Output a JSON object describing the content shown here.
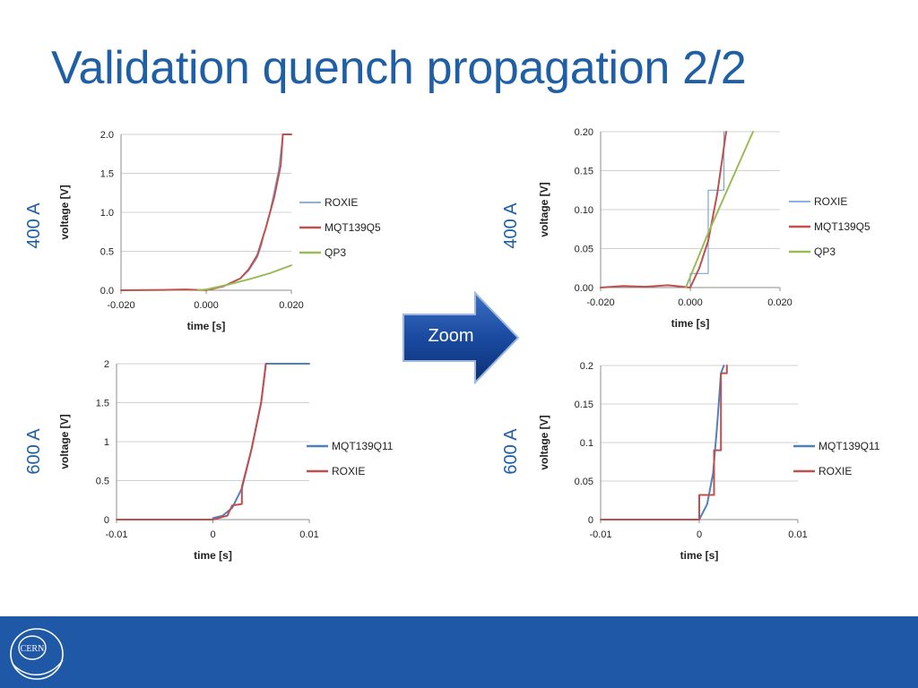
{
  "slide": {
    "title": "Validation quench propagation 2/2",
    "zoom_label": "Zoom",
    "logo_text": "CERN"
  },
  "side_labels": {
    "top_left": "400 A",
    "top_right": "400 A",
    "bottom_left": "600 A",
    "bottom_right": "600 A"
  },
  "colors": {
    "title": "#1f5fa6",
    "footer": "#2058a8",
    "roxie": "#7aa6d6",
    "mqt139q5": "#c0504d",
    "qp3": "#9bbb59",
    "mqt139q11": "#4f81bd",
    "roxie_600": "#c0504d"
  },
  "chart_data": [
    {
      "id": "c1",
      "type": "line",
      "xlabel": "time [s]",
      "ylabel": "voltage [V]",
      "xlim": [
        -0.02,
        0.02
      ],
      "ylim": [
        0,
        2.0
      ],
      "xticks": [
        "-0.020",
        "0.000",
        "0.020"
      ],
      "yticks": [
        "0.0",
        "0.5",
        "1.0",
        "1.5",
        "2.0"
      ],
      "legend_position": "right",
      "series": [
        {
          "name": "ROXIE",
          "color": "#7aa6d6",
          "width": 1.2,
          "x": [
            0.0,
            0.004,
            0.008,
            0.01,
            0.012,
            0.013,
            0.0135,
            0.015,
            0.016,
            0.017,
            0.018
          ],
          "y": [
            0.0,
            0.05,
            0.15,
            0.25,
            0.42,
            0.58,
            0.7,
            1.02,
            1.28,
            1.55,
            2.0
          ]
        },
        {
          "name": "MQT139Q5",
          "color": "#c0504d",
          "width": 2,
          "x": [
            -0.02,
            -0.01,
            -0.005,
            0.0,
            0.004,
            0.008,
            0.01,
            0.012,
            0.014,
            0.016,
            0.0175,
            0.018,
            0.02
          ],
          "y": [
            0.0,
            0.005,
            0.01,
            0.0,
            0.05,
            0.15,
            0.27,
            0.45,
            0.8,
            1.2,
            1.6,
            2.0,
            2.0
          ]
        },
        {
          "name": "QP3",
          "color": "#9bbb59",
          "width": 2,
          "x": [
            -0.002,
            0.0,
            0.005,
            0.01,
            0.015,
            0.02
          ],
          "y": [
            0.0,
            0.01,
            0.07,
            0.14,
            0.22,
            0.32
          ]
        }
      ]
    },
    {
      "id": "c2",
      "type": "line",
      "xlabel": "time [s]",
      "ylabel": "voltage [V]",
      "xlim": [
        -0.02,
        0.02
      ],
      "ylim": [
        0,
        0.2
      ],
      "xticks": [
        "-0.020",
        "0.000",
        "0.020"
      ],
      "yticks": [
        "0.00",
        "0.05",
        "0.10",
        "0.15",
        "0.20"
      ],
      "legend_position": "right",
      "series": [
        {
          "name": "ROXIE",
          "color": "#7aa6d6",
          "width": 1.2,
          "x": [
            0.0,
            0.0,
            0.004,
            0.004,
            0.0075,
            0.0075
          ],
          "y": [
            0.0,
            0.018,
            0.018,
            0.125,
            0.125,
            0.2
          ]
        },
        {
          "name": "MQT139Q5",
          "color": "#c0504d",
          "width": 2,
          "x": [
            -0.02,
            -0.015,
            -0.01,
            -0.005,
            0.0,
            0.002,
            0.004,
            0.006,
            0.008
          ],
          "y": [
            0.0,
            0.002,
            0.001,
            0.003,
            0.0,
            0.025,
            0.06,
            0.12,
            0.2
          ]
        },
        {
          "name": "QP3",
          "color": "#9bbb59",
          "width": 2,
          "x": [
            -0.001,
            0.004,
            0.009,
            0.014
          ],
          "y": [
            0.0,
            0.07,
            0.135,
            0.2
          ]
        }
      ]
    },
    {
      "id": "c3",
      "type": "line",
      "xlabel": "time [s]",
      "ylabel": "voltage [V]",
      "xlim": [
        -0.01,
        0.01
      ],
      "ylim": [
        0,
        2
      ],
      "xticks": [
        "-0.01",
        "0",
        "0.01"
      ],
      "yticks": [
        "0",
        "0.5",
        "1",
        "1.5",
        "2"
      ],
      "legend_position": "right",
      "series": [
        {
          "name": "MQT139Q11",
          "color": "#4f81bd",
          "width": 2,
          "x": [
            0.0,
            0.001,
            0.002,
            0.003,
            0.004,
            0.005,
            0.0055,
            0.01
          ],
          "y": [
            0.02,
            0.05,
            0.15,
            0.4,
            0.9,
            1.5,
            2.0,
            2.0
          ]
        },
        {
          "name": "ROXIE",
          "color": "#c0504d",
          "width": 2,
          "x": [
            -0.01,
            0.0,
            0.0015,
            0.002,
            0.003,
            0.003,
            0.004,
            0.005,
            0.0055
          ],
          "y": [
            0.0,
            0.0,
            0.05,
            0.18,
            0.2,
            0.42,
            0.9,
            1.5,
            2.0
          ]
        }
      ]
    },
    {
      "id": "c4",
      "type": "line",
      "xlabel": "time [s]",
      "ylabel": "voltage [V]",
      "xlim": [
        -0.01,
        0.01
      ],
      "ylim": [
        0,
        0.2
      ],
      "xticks": [
        "-0.01",
        "0",
        "0.01"
      ],
      "yticks": [
        "0",
        "0.05",
        "0.1",
        "0.15",
        "0.2"
      ],
      "legend_position": "right",
      "series": [
        {
          "name": "MQT139Q11",
          "color": "#4f81bd",
          "width": 2,
          "x": [
            0.0,
            0.0008,
            0.0014,
            0.0018,
            0.0022,
            0.0025
          ],
          "y": [
            0.0,
            0.02,
            0.06,
            0.12,
            0.19,
            0.2
          ]
        },
        {
          "name": "ROXIE",
          "color": "#c0504d",
          "width": 2,
          "x": [
            -0.01,
            0.0,
            0.0,
            0.0015,
            0.0015,
            0.0022,
            0.0022,
            0.0028,
            0.0028
          ],
          "y": [
            0.0,
            0.0,
            0.032,
            0.032,
            0.09,
            0.09,
            0.19,
            0.19,
            0.2
          ]
        }
      ]
    }
  ]
}
